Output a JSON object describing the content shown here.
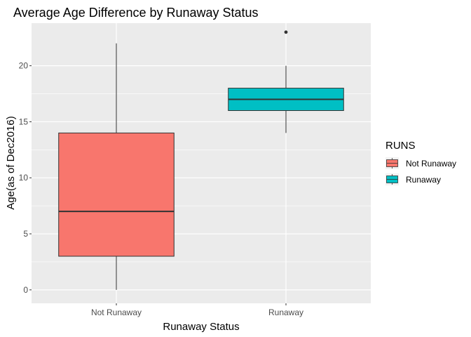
{
  "chart_data": {
    "type": "boxplot",
    "title": "Average Age Difference by Runaway Status",
    "xlabel": "Runaway Status",
    "ylabel": "Age(as of Dec2016)",
    "categories": [
      "Not Runaway",
      "Runaway"
    ],
    "ylim": [
      -1.2,
      23.8
    ],
    "yticks": [
      0,
      5,
      10,
      15,
      20
    ],
    "grid": true,
    "legend": {
      "title": "RUNS",
      "position": "right",
      "entries": [
        "Not Runaway",
        "Runaway"
      ]
    },
    "series": [
      {
        "name": "Not Runaway",
        "color": "#F8766D",
        "whisker_low": 0,
        "q1": 3,
        "median": 7,
        "q3": 14,
        "whisker_high": 22,
        "outliers": []
      },
      {
        "name": "Runaway",
        "color": "#00BFC4",
        "whisker_low": 14,
        "q1": 16,
        "median": 17,
        "q3": 18,
        "whisker_high": 20,
        "outliers": [
          23
        ]
      }
    ]
  }
}
